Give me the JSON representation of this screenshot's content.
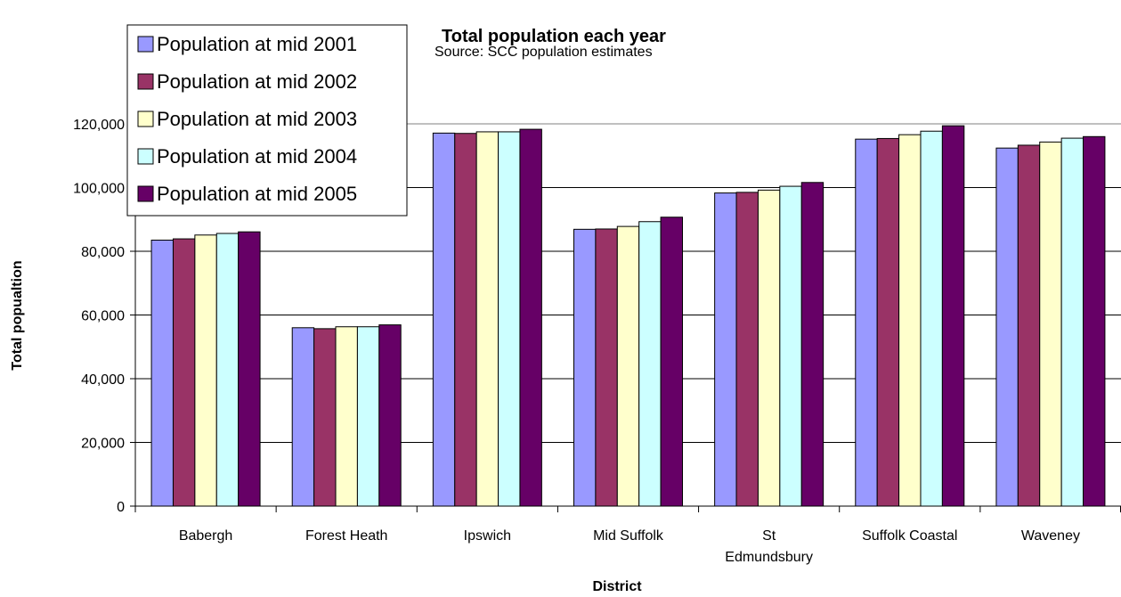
{
  "chart_data": {
    "type": "bar",
    "title": "Total population each year",
    "subtitle": "Source: SCC population estimates",
    "xlabel": "District",
    "ylabel": "Total popualtion",
    "ylim": [
      0,
      120000
    ],
    "yticks": [
      0,
      20000,
      40000,
      60000,
      80000,
      100000,
      120000
    ],
    "ytick_labels": [
      "0",
      "20,000",
      "40,000",
      "60,000",
      "80,000",
      "100,000",
      "120,000"
    ],
    "grid": true,
    "legend_position": "top-left",
    "categories": [
      [
        "Babergh"
      ],
      [
        "Forest Heath"
      ],
      [
        "Ipswich"
      ],
      [
        "Mid Suffolk"
      ],
      [
        "St",
        "Edmundsbury"
      ],
      [
        "Suffolk Coastal"
      ],
      [
        "Waveney"
      ]
    ],
    "series": [
      {
        "name": "Population at mid 2001",
        "color": "#9999ff",
        "values": [
          83500,
          56000,
          117100,
          86900,
          98300,
          115200,
          112400
        ]
      },
      {
        "name": "Population at mid 2002",
        "color": "#993366",
        "values": [
          83900,
          55700,
          117000,
          87000,
          98500,
          115400,
          113300
        ]
      },
      {
        "name": "Population at mid 2003",
        "color": "#ffffcc",
        "values": [
          85100,
          56300,
          117500,
          87800,
          99200,
          116600,
          114300
        ]
      },
      {
        "name": "Population at mid 2004",
        "color": "#ccffff",
        "values": [
          85600,
          56300,
          117500,
          89300,
          100400,
          117700,
          115500
        ]
      },
      {
        "name": "Population at mid 2005",
        "color": "#660066",
        "values": [
          86100,
          56900,
          118300,
          90700,
          101600,
          119400,
          116000
        ]
      }
    ]
  }
}
